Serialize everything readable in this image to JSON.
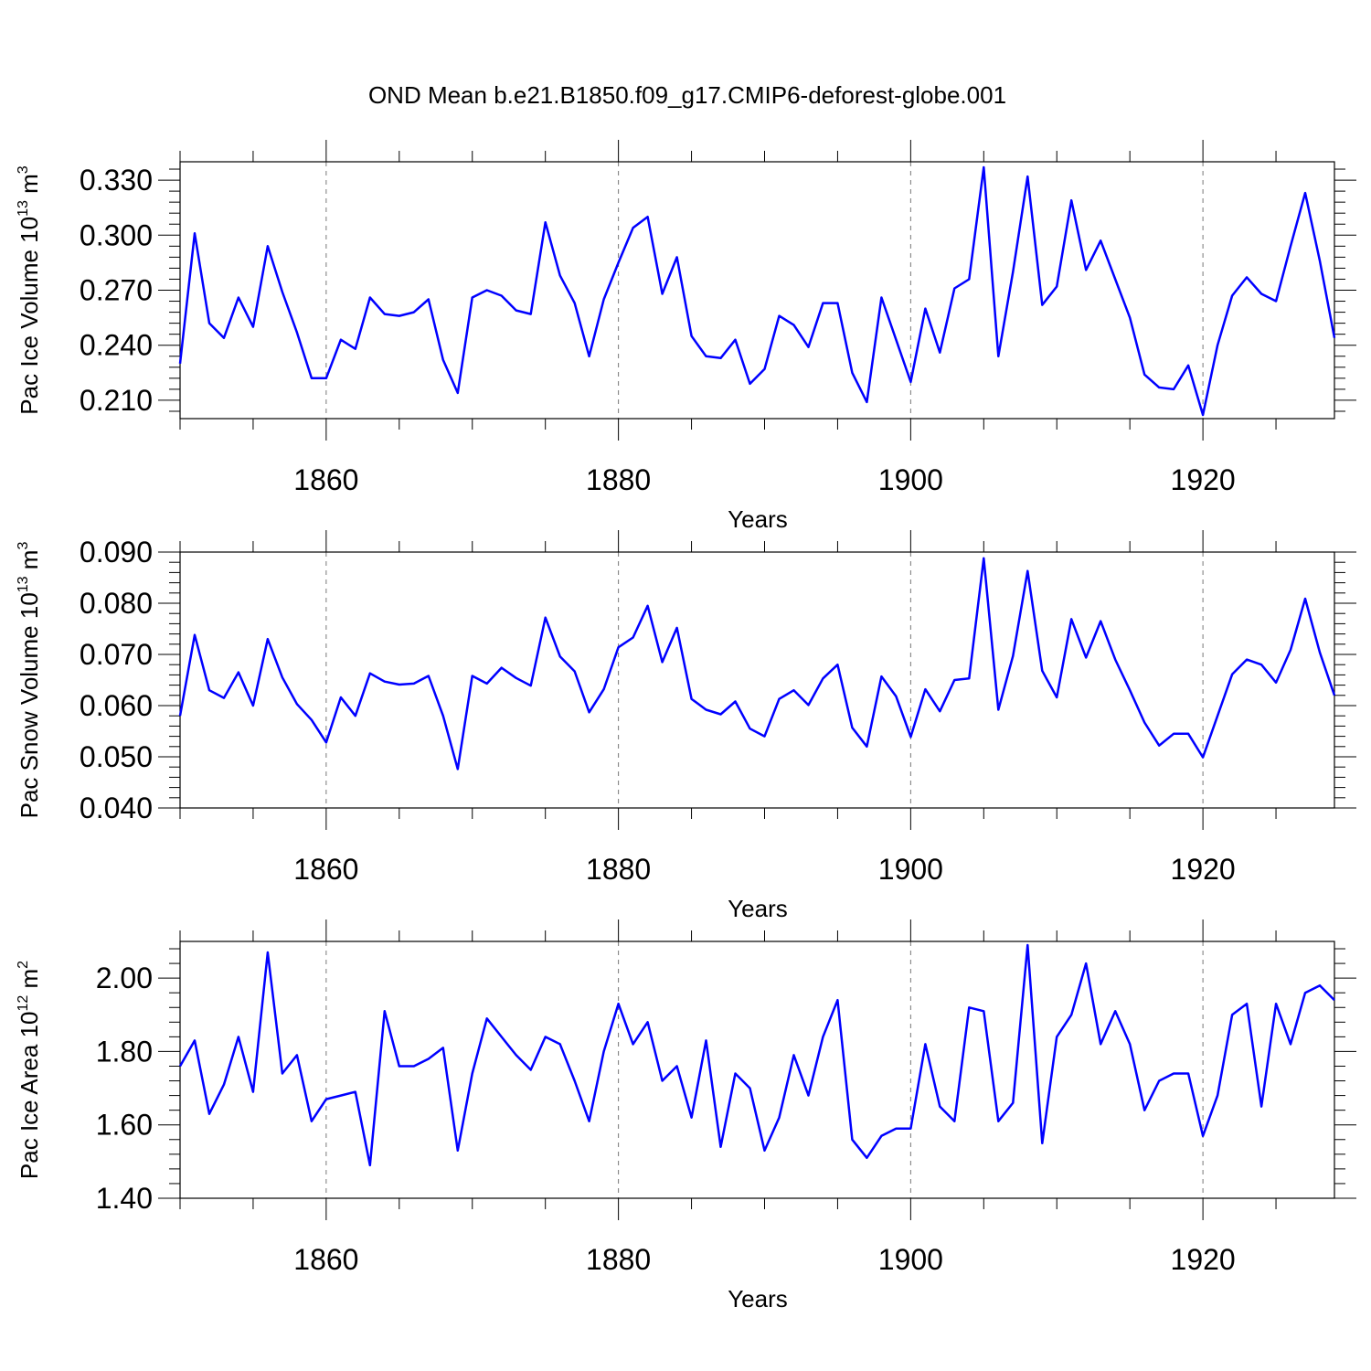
{
  "figure_title": "OND Mean b.e21.B1850.f09_g17.CMIP6-deforest-globe.001",
  "line_color": "#0000ff",
  "chart_data": [
    {
      "type": "line",
      "title": "OND Mean b.e21.B1850.f09_g17.CMIP6-deforest-globe.001",
      "xlabel": "Years",
      "ylabel": {
        "prefix": "Pac Ice Volume 10",
        "exp": "13",
        "middle": " m",
        "unit_exp": "3"
      },
      "xlim": [
        1850,
        1929
      ],
      "ylim": [
        0.2,
        0.34
      ],
      "xticks": [
        1860,
        1880,
        1900,
        1920
      ],
      "xtick_labels": [
        "1860",
        "1880",
        "1900",
        "1920"
      ],
      "yticks": [
        0.21,
        0.24,
        0.27,
        0.3,
        0.33
      ],
      "ytick_labels": [
        "0.210",
        "0.240",
        "0.270",
        "0.300",
        "0.330"
      ],
      "x_start": 1850,
      "values": [
        0.23,
        0.301,
        0.252,
        0.244,
        0.266,
        0.25,
        0.294,
        0.269,
        0.247,
        0.222,
        0.222,
        0.243,
        0.238,
        0.266,
        0.257,
        0.256,
        0.258,
        0.265,
        0.232,
        0.214,
        0.266,
        0.27,
        0.267,
        0.259,
        0.257,
        0.307,
        0.278,
        0.263,
        0.234,
        0.265,
        0.285,
        0.304,
        0.31,
        0.268,
        0.288,
        0.245,
        0.234,
        0.233,
        0.243,
        0.219,
        0.227,
        0.256,
        0.251,
        0.239,
        0.263,
        0.263,
        0.225,
        0.209,
        0.266,
        0.243,
        0.22,
        0.26,
        0.236,
        0.271,
        0.276,
        0.337,
        0.234,
        0.28,
        0.332,
        0.262,
        0.272,
        0.319,
        0.281,
        0.297,
        0.276,
        0.255,
        0.224,
        0.217,
        0.216,
        0.229,
        0.202,
        0.24,
        0.267,
        0.277,
        0.268,
        0.264,
        0.294,
        0.323,
        0.286,
        0.244
      ]
    },
    {
      "type": "line",
      "xlabel": "Years",
      "ylabel": {
        "prefix": "Pac Snow Volume 10",
        "exp": "13",
        "middle": " m",
        "unit_exp": "3"
      },
      "xlim": [
        1850,
        1929
      ],
      "ylim": [
        0.04,
        0.09
      ],
      "xticks": [
        1860,
        1880,
        1900,
        1920
      ],
      "xtick_labels": [
        "1860",
        "1880",
        "1900",
        "1920"
      ],
      "yticks": [
        0.04,
        0.05,
        0.06,
        0.07,
        0.08,
        0.09
      ],
      "ytick_labels": [
        "0.040",
        "0.050",
        "0.060",
        "0.070",
        "0.080",
        "0.090"
      ],
      "x_start": 1850,
      "values": [
        0.058,
        0.0738,
        0.063,
        0.0615,
        0.0665,
        0.06,
        0.073,
        0.0655,
        0.0603,
        0.0572,
        0.0528,
        0.0616,
        0.058,
        0.0663,
        0.0647,
        0.0641,
        0.0643,
        0.0658,
        0.058,
        0.0476,
        0.0658,
        0.0643,
        0.0674,
        0.0654,
        0.0639,
        0.0772,
        0.0696,
        0.0667,
        0.0587,
        0.0632,
        0.0714,
        0.0733,
        0.0795,
        0.0685,
        0.0752,
        0.0613,
        0.0592,
        0.0583,
        0.0608,
        0.0555,
        0.054,
        0.0613,
        0.063,
        0.0601,
        0.0653,
        0.068,
        0.0557,
        0.052,
        0.0657,
        0.0618,
        0.0539,
        0.0632,
        0.0589,
        0.065,
        0.0653,
        0.0888,
        0.0592,
        0.0697,
        0.0863,
        0.0668,
        0.0616,
        0.0769,
        0.0694,
        0.0765,
        0.069,
        0.063,
        0.0567,
        0.0522,
        0.0545,
        0.0545,
        0.0499,
        0.058,
        0.0661,
        0.069,
        0.068,
        0.0645,
        0.0709,
        0.0809,
        0.0704,
        0.062
      ]
    },
    {
      "type": "line",
      "xlabel": "Years",
      "ylabel": {
        "prefix": "Pac Ice Area 10",
        "exp": "12",
        "middle": " m",
        "unit_exp": "2"
      },
      "xlim": [
        1850,
        1929
      ],
      "ylim": [
        1.4,
        2.1
      ],
      "xticks": [
        1860,
        1880,
        1900,
        1920
      ],
      "xtick_labels": [
        "1860",
        "1880",
        "1900",
        "1920"
      ],
      "yticks": [
        1.4,
        1.6,
        1.8,
        2.0
      ],
      "ytick_labels": [
        "1.40",
        "1.60",
        "1.80",
        "2.00"
      ],
      "x_start": 1850,
      "values": [
        1.76,
        1.83,
        1.63,
        1.71,
        1.84,
        1.69,
        2.07,
        1.74,
        1.79,
        1.61,
        1.67,
        1.68,
        1.69,
        1.49,
        1.91,
        1.76,
        1.76,
        1.78,
        1.81,
        1.53,
        1.74,
        1.89,
        1.84,
        1.79,
        1.75,
        1.84,
        1.82,
        1.72,
        1.61,
        1.8,
        1.93,
        1.82,
        1.88,
        1.72,
        1.76,
        1.62,
        1.83,
        1.54,
        1.74,
        1.7,
        1.53,
        1.62,
        1.79,
        1.68,
        1.84,
        1.94,
        1.56,
        1.51,
        1.57,
        1.59,
        1.59,
        1.82,
        1.65,
        1.61,
        1.92,
        1.91,
        1.61,
        1.66,
        2.09,
        1.55,
        1.84,
        1.9,
        2.04,
        1.82,
        1.91,
        1.82,
        1.64,
        1.72,
        1.74,
        1.74,
        1.57,
        1.68,
        1.9,
        1.93,
        1.65,
        1.93,
        1.82,
        1.96,
        1.98,
        1.94
      ]
    }
  ]
}
